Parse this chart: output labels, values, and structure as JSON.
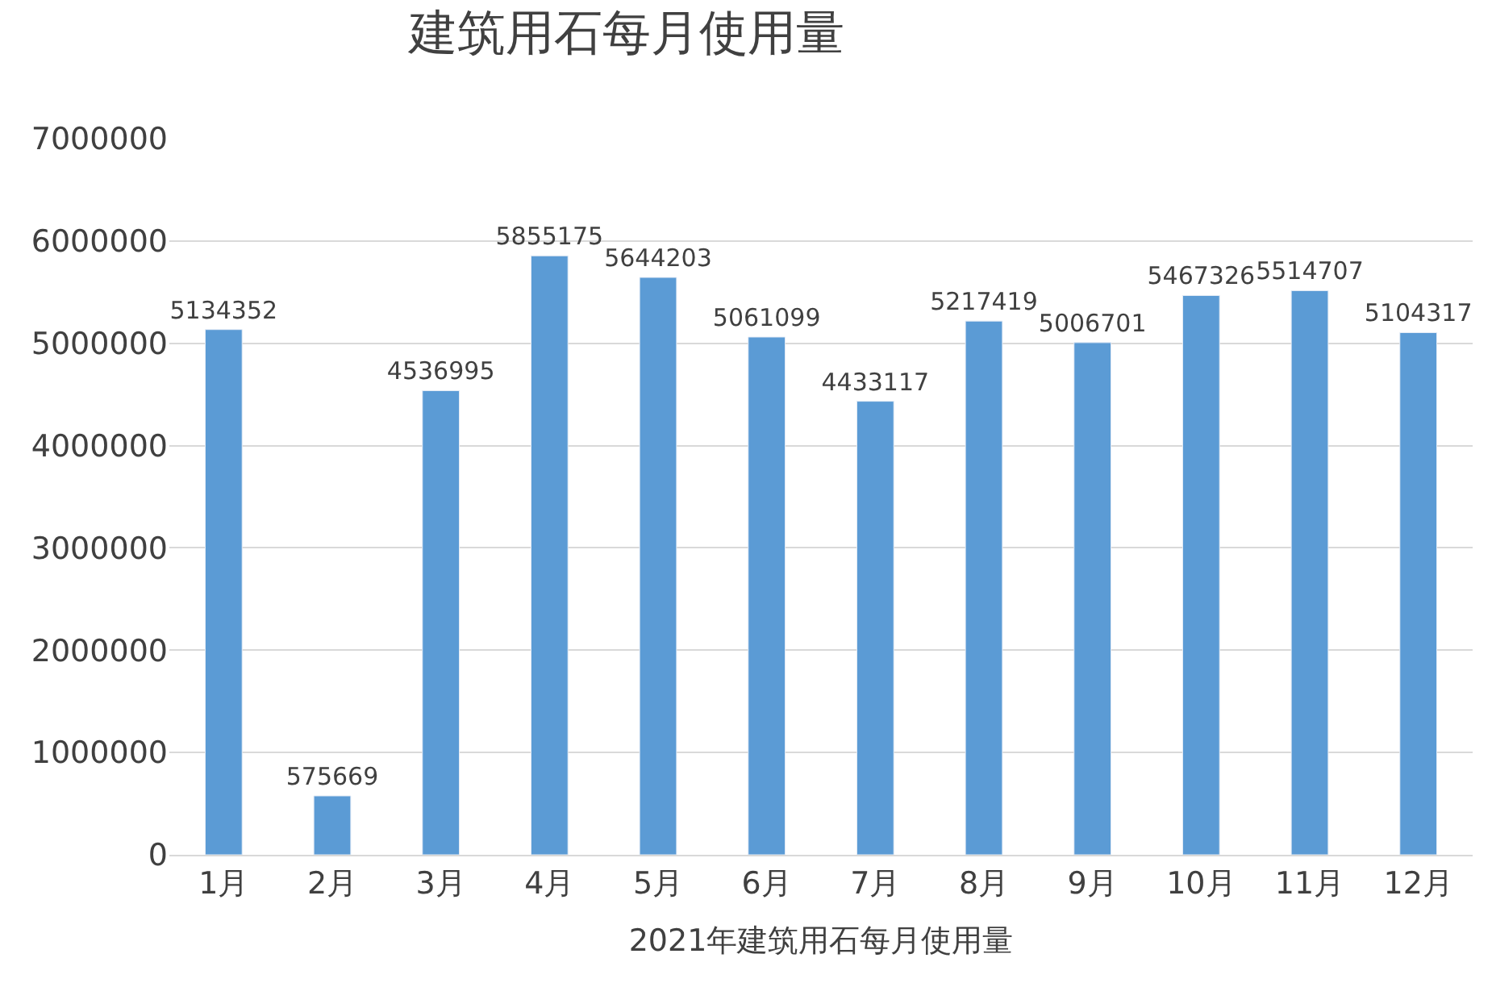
{
  "chart_data": {
    "type": "bar",
    "title": "建筑用石每月使用量",
    "xlabel": "2021年建筑用石每月使用量",
    "categories": [
      "1月",
      "2月",
      "3月",
      "4月",
      "5月",
      "6月",
      "7月",
      "8月",
      "9月",
      "10月",
      "11月",
      "12月"
    ],
    "values": [
      5134352,
      575669,
      4536995,
      5855175,
      5644203,
      5061099,
      4433117,
      5217419,
      5006701,
      5467326,
      5514707,
      5104317
    ],
    "color": "#5b9bd5",
    "ylim": [
      0,
      7000000
    ],
    "yticks": [
      0,
      1000000,
      2000000,
      3000000,
      4000000,
      5000000,
      6000000,
      7000000
    ],
    "grid": "y",
    "data_labels": true
  }
}
